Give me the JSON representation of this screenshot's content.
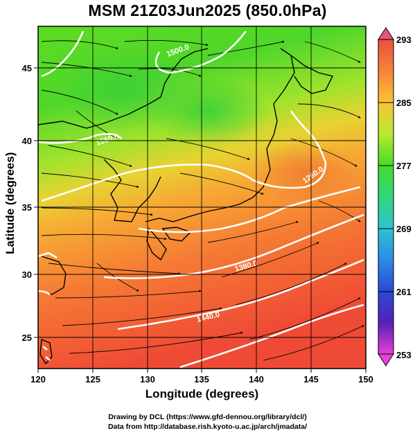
{
  "figure": {
    "title": "MSM 21Z03Jun2025 (850.0hPa)",
    "xlabel": "Longitude (degrees)",
    "ylabel": "Latitude  (degrees)",
    "credit_line1": "Drawing by DCL (https://www.gfd-dennou.org/library/dcl/)",
    "credit_line2": "Data from http://database.rish.kyoto-u.ac.jp/arch/jmadata/"
  },
  "axes": {
    "lon_range": [
      120,
      150
    ],
    "lat_range": [
      22.4,
      47.6
    ],
    "lon_ticks": [
      "120",
      "125",
      "130",
      "135",
      "140",
      "145",
      "150"
    ],
    "lat_ticks": [
      "25",
      "30",
      "35",
      "40",
      "45"
    ]
  },
  "colorbar": {
    "range": [
      253,
      293
    ],
    "tick_labels": [
      "293",
      "285",
      "277",
      "269",
      "261",
      "253"
    ],
    "colors": [
      "#e9527d",
      "#f5603a",
      "#fd9533",
      "#f7c832",
      "#c6ee2e",
      "#5ee02b",
      "#2fd866",
      "#2ec7c0",
      "#2d8fe3",
      "#2c4cd8",
      "#2f20b0",
      "#a424c5",
      "#ea3fd9"
    ]
  },
  "contours": {
    "labels": [
      "1260.0",
      "1380.0",
      "1440.0",
      "1500.0",
      "1560.0"
    ]
  },
  "icons": [
    "arrow-up-icon",
    "arrow-down-icon"
  ]
}
